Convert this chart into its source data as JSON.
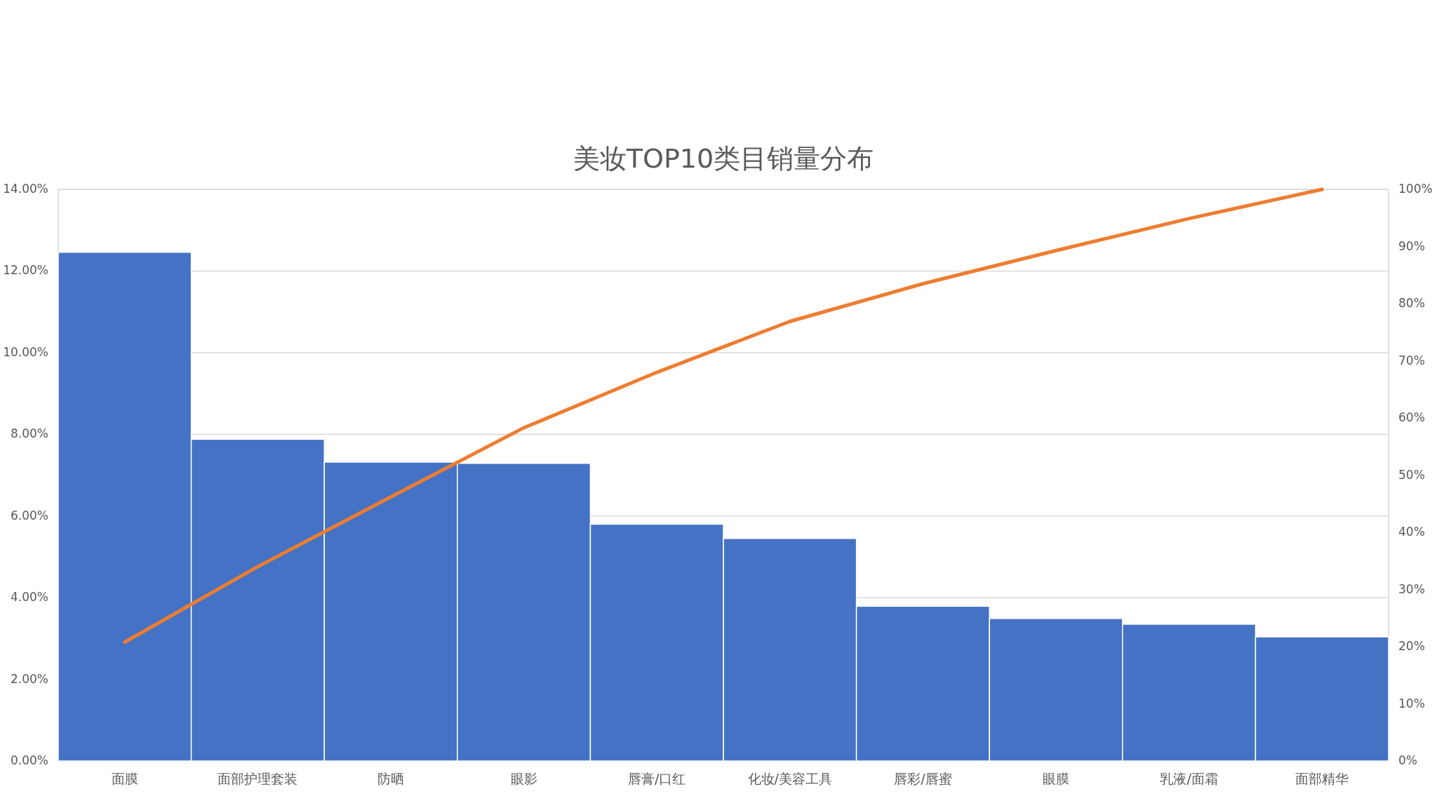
{
  "chart_data": {
    "type": "bar",
    "title": "美妆TOP10类目销量分布",
    "categories": [
      "面膜",
      "面部护理套装",
      "防晒",
      "眼影",
      "唇膏/口红",
      "化妆/美容工具",
      "唇彩/唇蜜",
      "眼膜",
      "乳液/面霜",
      "面部精华"
    ],
    "series": [
      {
        "color": "#4472c4",
        "values": [
          12.46,
          7.88,
          7.32,
          7.29,
          5.8,
          5.45,
          3.79,
          3.49,
          3.35,
          3.04
        ]
      },
      {
        "type": "line",
        "axis": "y2",
        "color": "#ed7d31",
        "values": [
          20.8,
          34,
          46.2,
          58.3,
          68,
          76.9,
          83.5,
          89.3,
          94.9,
          100
        ]
      }
    ],
    "ylim": [
      0,
      14
    ],
    "yticks": [
      {
        "value": 0,
        "label": "0.00%"
      },
      {
        "value": 2,
        "label": "2.00%"
      },
      {
        "value": 4,
        "label": "4.00%"
      },
      {
        "value": 6,
        "label": "6.00%"
      },
      {
        "value": 8,
        "label": "8.00%"
      },
      {
        "value": 10,
        "label": "10.00%"
      },
      {
        "value": 12,
        "label": "12.00%"
      },
      {
        "value": 14,
        "label": "14.00%"
      }
    ],
    "y2lim": [
      0,
      100
    ],
    "y2ticks": [
      {
        "value": 0,
        "label": "0%"
      },
      {
        "value": 10,
        "label": "10%"
      },
      {
        "value": 20,
        "label": "20%"
      },
      {
        "value": 30,
        "label": "30%"
      },
      {
        "value": 40,
        "label": "40%"
      },
      {
        "value": 50,
        "label": "50%"
      },
      {
        "value": 60,
        "label": "60%"
      },
      {
        "value": 70,
        "label": "70%"
      },
      {
        "value": 80,
        "label": "80%"
      },
      {
        "value": 90,
        "label": "90%"
      },
      {
        "value": 100,
        "label": "100%"
      }
    ],
    "grid": "y"
  }
}
